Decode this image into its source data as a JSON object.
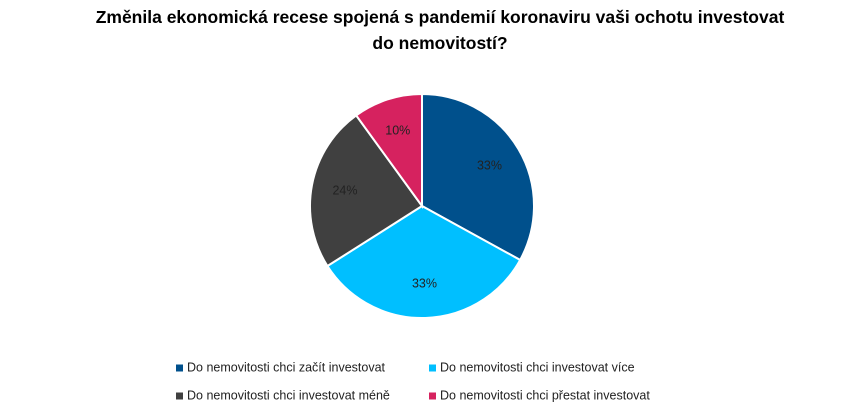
{
  "chart_data": {
    "type": "pie",
    "title": "Změnila ekonomická recese spojená s pandemií koronaviru vaši ochotu investovat do nemovitostí?",
    "categories": [
      "Do nemovitosti chci začít investovat",
      "Do nemovitosti chci investovat více",
      "Do nemovitosti chci investovat méně",
      "Do nemovitosti chci přestat investovat"
    ],
    "values": [
      33,
      33,
      24,
      10
    ],
    "value_labels": [
      "33%",
      "33%",
      "24%",
      "10%"
    ],
    "colors": [
      "#00508c",
      "#00bfff",
      "#404040",
      "#d6225f"
    ],
    "legend": "bottom"
  }
}
